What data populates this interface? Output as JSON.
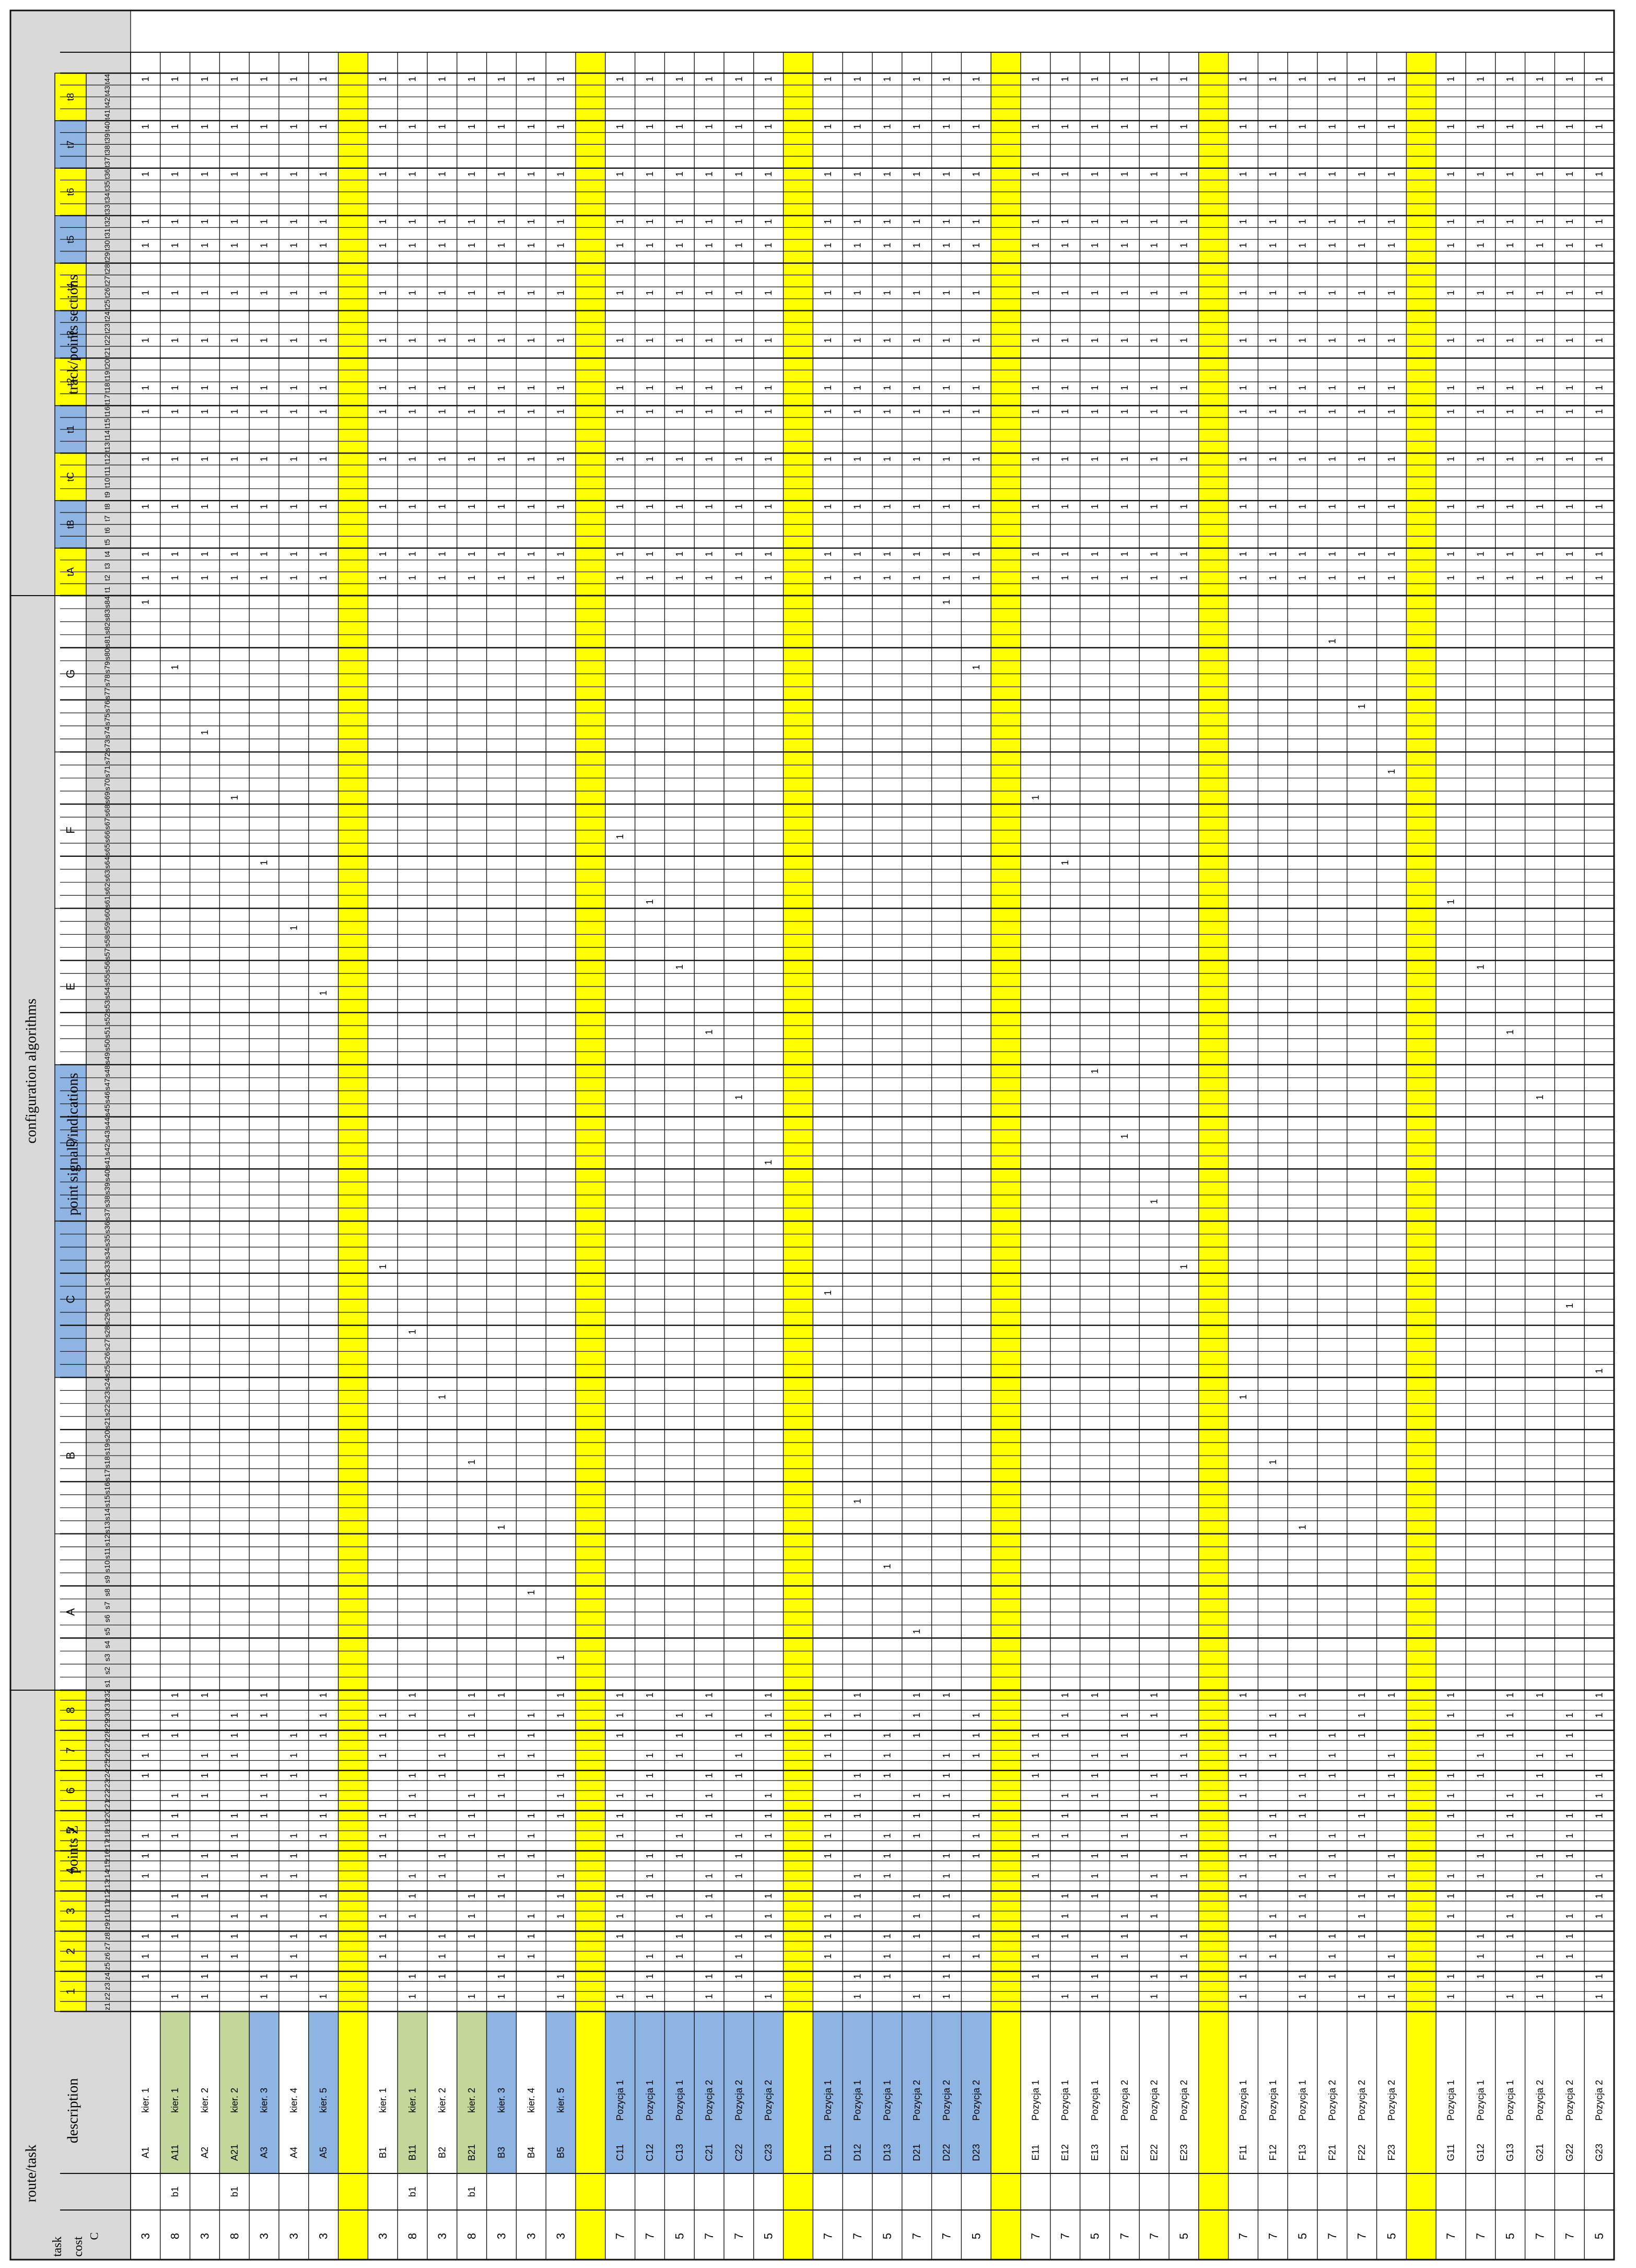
{
  "header": {
    "task_label": "task",
    "cost_label": "cost",
    "route_task_label": "route/task",
    "description_label": "description",
    "config_label": "configuration algorithms",
    "points_z_label": "points Z",
    "point_signals_label": "point signals/indications",
    "track_label": "track/points sections",
    "c_label": "C"
  },
  "groups": {
    "points_z": [
      "1",
      "2",
      "3",
      "4",
      "5",
      "6",
      "7",
      "8"
    ],
    "signal_groups": [
      "A",
      "B",
      "C",
      "D",
      "E",
      "F",
      "G"
    ],
    "track_groups": [
      "tA",
      "tB",
      "tC",
      "t1",
      "t2",
      "t3",
      "t4",
      "t5",
      "t6",
      "t7",
      "t8"
    ]
  },
  "colors": {
    "yellow": "#ffff00",
    "blue": "#8eb4e3",
    "green": "#c4d79b",
    "header_gray": "#d9d9d9"
  },
  "rows": [
    {
      "cost": "3",
      "code": "A1",
      "desc": "kier. 1",
      "c": "",
      "bg": "none"
    },
    {
      "cost": "8",
      "code": "A11",
      "desc": "kier. 1",
      "c": "b1",
      "bg": "green"
    },
    {
      "cost": "3",
      "code": "A2",
      "desc": "kier. 2",
      "c": "",
      "bg": "none"
    },
    {
      "cost": "8",
      "code": "A21",
      "desc": "kier. 2",
      "c": "b1",
      "bg": "green"
    },
    {
      "cost": "3",
      "code": "A3",
      "desc": "kier. 3",
      "c": "",
      "bg": "blue"
    },
    {
      "cost": "3",
      "code": "A4",
      "desc": "kier. 4",
      "c": "",
      "bg": "none"
    },
    {
      "cost": "3",
      "code": "A5",
      "desc": "kier. 5",
      "c": "",
      "bg": "blue"
    },
    {
      "cost": "",
      "code": "",
      "desc": "",
      "c": "",
      "bg": "yellow"
    },
    {
      "cost": "3",
      "code": "B1",
      "desc": "kier. 1",
      "c": "",
      "bg": "none"
    },
    {
      "cost": "8",
      "code": "B11",
      "desc": "kier. 1",
      "c": "b1",
      "bg": "green"
    },
    {
      "cost": "3",
      "code": "B2",
      "desc": "kier. 2",
      "c": "",
      "bg": "none"
    },
    {
      "cost": "8",
      "code": "B21",
      "desc": "kier. 2",
      "c": "b1",
      "bg": "green"
    },
    {
      "cost": "3",
      "code": "B3",
      "desc": "kier. 3",
      "c": "",
      "bg": "blue"
    },
    {
      "cost": "3",
      "code": "B4",
      "desc": "kier. 4",
      "c": "",
      "bg": "none"
    },
    {
      "cost": "3",
      "code": "B5",
      "desc": "kier. 5",
      "c": "",
      "bg": "blue"
    },
    {
      "cost": "",
      "code": "",
      "desc": "",
      "c": "",
      "bg": "yellow"
    },
    {
      "cost": "7",
      "code": "C11",
      "desc": "Pozycja 1",
      "c": "",
      "bg": "blue"
    },
    {
      "cost": "7",
      "code": "C12",
      "desc": "Pozycja 1",
      "c": "",
      "bg": "blue"
    },
    {
      "cost": "5",
      "code": "C13",
      "desc": "Pozycja 1",
      "c": "",
      "bg": "blue"
    },
    {
      "cost": "7",
      "code": "C21",
      "desc": "Pozycja 2",
      "c": "",
      "bg": "blue"
    },
    {
      "cost": "7",
      "code": "C22",
      "desc": "Pozycja 2",
      "c": "",
      "bg": "blue"
    },
    {
      "cost": "5",
      "code": "C23",
      "desc": "Pozycja 2",
      "c": "",
      "bg": "blue"
    },
    {
      "cost": "",
      "code": "",
      "desc": "",
      "c": "",
      "bg": "yellow"
    },
    {
      "cost": "7",
      "code": "D11",
      "desc": "Pozycja 1",
      "c": "",
      "bg": "blue"
    },
    {
      "cost": "7",
      "code": "D12",
      "desc": "Pozycja 1",
      "c": "",
      "bg": "blue"
    },
    {
      "cost": "5",
      "code": "D13",
      "desc": "Pozycja 1",
      "c": "",
      "bg": "blue"
    },
    {
      "cost": "7",
      "code": "D21",
      "desc": "Pozycja 2",
      "c": "",
      "bg": "blue"
    },
    {
      "cost": "7",
      "code": "D22",
      "desc": "Pozycja 2",
      "c": "",
      "bg": "blue"
    },
    {
      "cost": "5",
      "code": "D23",
      "desc": "Pozycja 2",
      "c": "",
      "bg": "blue"
    },
    {
      "cost": "",
      "code": "",
      "desc": "",
      "c": "",
      "bg": "yellow"
    },
    {
      "cost": "7",
      "code": "E11",
      "desc": "Pozycja 1",
      "c": "",
      "bg": "none"
    },
    {
      "cost": "7",
      "code": "E12",
      "desc": "Pozycja 1",
      "c": "",
      "bg": "none"
    },
    {
      "cost": "5",
      "code": "E13",
      "desc": "Pozycja 1",
      "c": "",
      "bg": "none"
    },
    {
      "cost": "7",
      "code": "E21",
      "desc": "Pozycja 2",
      "c": "",
      "bg": "none"
    },
    {
      "cost": "7",
      "code": "E22",
      "desc": "Pozycja 2",
      "c": "",
      "bg": "none"
    },
    {
      "cost": "5",
      "code": "E23",
      "desc": "Pozycja 2",
      "c": "",
      "bg": "none"
    },
    {
      "cost": "",
      "code": "",
      "desc": "",
      "c": "",
      "bg": "yellow"
    },
    {
      "cost": "7",
      "code": "F11",
      "desc": "Pozycja 1",
      "c": "",
      "bg": "none"
    },
    {
      "cost": "7",
      "code": "F12",
      "desc": "Pozycja 1",
      "c": "",
      "bg": "none"
    },
    {
      "cost": "5",
      "code": "F13",
      "desc": "Pozycja 1",
      "c": "",
      "bg": "none"
    },
    {
      "cost": "7",
      "code": "F21",
      "desc": "Pozycja 2",
      "c": "",
      "bg": "none"
    },
    {
      "cost": "7",
      "code": "F22",
      "desc": "Pozycja 2",
      "c": "",
      "bg": "none"
    },
    {
      "cost": "5",
      "code": "F23",
      "desc": "Pozycja 2",
      "c": "",
      "bg": "none"
    },
    {
      "cost": "",
      "code": "",
      "desc": "",
      "c": "",
      "bg": "yellow"
    },
    {
      "cost": "7",
      "code": "G11",
      "desc": "Pozycja 1",
      "c": "",
      "bg": "none"
    },
    {
      "cost": "7",
      "code": "G12",
      "desc": "Pozycja 1",
      "c": "",
      "bg": "none"
    },
    {
      "cost": "5",
      "code": "G13",
      "desc": "Pozycja 1",
      "c": "",
      "bg": "none"
    },
    {
      "cost": "7",
      "code": "G21",
      "desc": "Pozycja 2",
      "c": "",
      "bg": "none"
    },
    {
      "cost": "7",
      "code": "G22",
      "desc": "Pozycja 2",
      "c": "",
      "bg": "none"
    },
    {
      "cost": "5",
      "code": "G23",
      "desc": "Pozycja 2",
      "c": "",
      "bg": "none"
    }
  ],
  "matrix": [
    {
      "z": [
        1,
        0,
        0,
        1,
        1,
        0,
        0,
        0
      ],
      "sig": [
        [
          0,
          0,
          0,
          0,
          0,
          1,
          0
        ],
        [],
        [],
        [],
        [],
        [],
        []
      ],
      "trk": [
        [
          1,
          0,
          0,
          0,
          0,
          0,
          0
        ],
        [
          0,
          0,
          0,
          0,
          0,
          0,
          0,
          0
        ],
        [
          0,
          1,
          0,
          0,
          0,
          0,
          0,
          0
        ],
        [
          1,
          0,
          0,
          0,
          0,
          0,
          0,
          0
        ]
      ]
    },
    {
      "z": [
        1,
        0,
        0,
        1,
        1,
        0,
        0,
        0
      ],
      "sig": [
        [],
        [],
        [],
        [],
        [],
        [],
        []
      ],
      "trk": []
    },
    {
      "z": [
        1,
        1,
        1,
        0,
        0,
        1,
        0,
        0
      ],
      "sig": [],
      "trk": []
    },
    {
      "z": [
        1,
        1,
        1,
        0,
        0,
        1,
        0,
        0
      ],
      "sig": [],
      "trk": []
    },
    {
      "z": [
        1,
        0,
        0,
        1,
        1,
        1,
        0,
        0
      ],
      "sig": [],
      "trk": []
    },
    {
      "z": [
        1,
        1,
        1,
        0,
        0,
        1,
        1,
        0
      ],
      "sig": [],
      "trk": []
    },
    {
      "z": [
        1,
        0,
        0,
        1,
        1,
        1,
        1,
        1
      ],
      "sig": [],
      "trk": []
    },
    {
      "z": [],
      "sig": [],
      "trk": []
    },
    {
      "z": [
        0,
        1,
        0,
        1,
        1,
        0,
        0,
        0
      ],
      "sig": [],
      "trk": []
    },
    {
      "z": [
        0,
        1,
        0,
        1,
        1,
        0,
        0,
        0
      ],
      "sig": [],
      "trk": []
    },
    {
      "z": [
        0,
        1,
        1,
        0,
        0,
        1,
        0,
        0
      ],
      "sig": [],
      "trk": []
    },
    {
      "z": [
        0,
        1,
        1,
        0,
        0,
        1,
        0,
        0
      ],
      "sig": [],
      "trk": []
    },
    {
      "z": [
        0,
        1,
        0,
        1,
        1,
        1,
        0,
        0
      ],
      "sig": [],
      "trk": []
    },
    {
      "z": [
        0,
        1,
        1,
        0,
        0,
        1,
        1,
        0
      ],
      "sig": [],
      "trk": []
    },
    {
      "z": [
        0,
        1,
        0,
        1,
        1,
        1,
        1,
        1
      ],
      "sig": [],
      "trk": []
    }
  ]
}
